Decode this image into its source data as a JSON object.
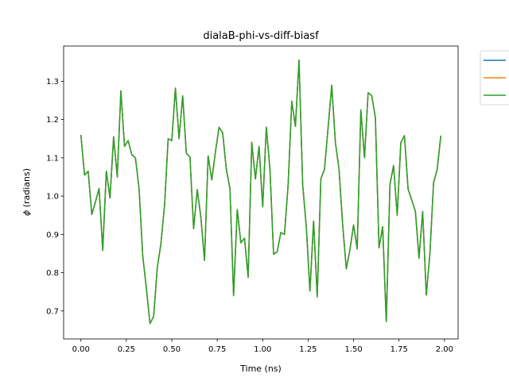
{
  "chart_data": {
    "type": "line",
    "title": "dialaB-phi-vs-diff-biasf",
    "xlabel": "Time (ns)",
    "ylabel_symbol": "ϕ",
    "ylabel_text": " (radians)",
    "xlim": [
      -0.095,
      2.075
    ],
    "ylim": [
      0.627,
      1.392
    ],
    "x_ticks": [
      0.0,
      0.25,
      0.5,
      0.75,
      1.0,
      1.25,
      1.5,
      1.75,
      2.0
    ],
    "x_tick_labels": [
      "0.00",
      "0.25",
      "0.50",
      "0.75",
      "1.00",
      "1.25",
      "1.50",
      "1.75",
      "2.00"
    ],
    "y_ticks": [
      0.7,
      0.8,
      0.9,
      1.0,
      1.1,
      1.2,
      1.3
    ],
    "y_tick_labels": [
      "0.7",
      "0.8",
      "0.9",
      "1.0",
      "1.1",
      "1.2",
      "1.3"
    ],
    "grid": false,
    "legend_placement": "outside-top-right",
    "x": [
      0.0,
      0.02,
      0.04,
      0.06,
      0.08,
      0.1,
      0.12,
      0.14,
      0.16,
      0.18,
      0.2,
      0.22,
      0.24,
      0.26,
      0.28,
      0.3,
      0.32,
      0.34,
      0.36,
      0.38,
      0.4,
      0.42,
      0.44,
      0.46,
      0.48,
      0.5,
      0.52,
      0.54,
      0.56,
      0.58,
      0.6,
      0.62,
      0.64,
      0.66,
      0.68,
      0.7,
      0.72,
      0.74,
      0.76,
      0.78,
      0.8,
      0.82,
      0.84,
      0.86,
      0.88,
      0.9,
      0.92,
      0.94,
      0.96,
      0.98,
      1.0,
      1.02,
      1.04,
      1.06,
      1.08,
      1.1,
      1.12,
      1.14,
      1.16,
      1.18,
      1.2,
      1.22,
      1.24,
      1.26,
      1.28,
      1.3,
      1.32,
      1.34,
      1.36,
      1.38,
      1.4,
      1.42,
      1.44,
      1.46,
      1.48,
      1.5,
      1.52,
      1.54,
      1.56,
      1.58,
      1.6,
      1.62,
      1.64,
      1.66,
      1.68,
      1.7,
      1.72,
      1.74,
      1.76,
      1.78,
      1.8,
      1.82,
      1.84,
      1.86,
      1.88,
      1.9,
      1.92,
      1.94,
      1.96,
      1.98
    ],
    "series": [
      {
        "color": "#1f77b4",
        "values": [
          1.16,
          1.055,
          1.065,
          0.952,
          0.985,
          1.02,
          0.858,
          1.065,
          0.995,
          1.155,
          1.05,
          1.275,
          1.13,
          1.145,
          1.108,
          1.1,
          1.02,
          0.845,
          0.76,
          0.667,
          0.685,
          0.812,
          0.875,
          0.975,
          1.15,
          1.145,
          1.282,
          1.15,
          1.262,
          1.112,
          1.102,
          0.915,
          1.017,
          0.945,
          0.832,
          1.105,
          1.042,
          1.115,
          1.18,
          1.165,
          1.07,
          1.02,
          0.74,
          0.965,
          0.878,
          0.89,
          0.788,
          1.14,
          1.045,
          1.13,
          0.972,
          1.18,
          1.07,
          0.848,
          0.855,
          0.905,
          0.9,
          1.03,
          1.248,
          1.182,
          1.355,
          1.03,
          0.92,
          0.752,
          0.935,
          0.737,
          1.045,
          1.07,
          1.18,
          1.29,
          1.14,
          1.07,
          0.925,
          0.81,
          0.86,
          0.925,
          0.862,
          1.225,
          1.1,
          1.27,
          1.262,
          1.205,
          0.865,
          0.92,
          0.672,
          1.03,
          1.08,
          0.95,
          1.14,
          1.158,
          1.018,
          0.99,
          0.96,
          0.838,
          0.96,
          0.742,
          0.85,
          1.035,
          1.07,
          1.158
        ]
      },
      {
        "color": "#ff7f0e",
        "values": [
          1.16,
          1.055,
          1.065,
          0.952,
          0.985,
          1.02,
          0.858,
          1.065,
          0.995,
          1.155,
          1.05,
          1.275,
          1.13,
          1.145,
          1.108,
          1.1,
          1.02,
          0.845,
          0.76,
          0.667,
          0.685,
          0.812,
          0.875,
          0.975,
          1.15,
          1.145,
          1.282,
          1.15,
          1.262,
          1.112,
          1.102,
          0.915,
          1.017,
          0.945,
          0.832,
          1.105,
          1.042,
          1.115,
          1.18,
          1.165,
          1.07,
          1.02,
          0.74,
          0.965,
          0.878,
          0.89,
          0.788,
          1.14,
          1.045,
          1.13,
          0.972,
          1.18,
          1.07,
          0.848,
          0.855,
          0.905,
          0.9,
          1.03,
          1.248,
          1.182,
          1.355,
          1.03,
          0.92,
          0.752,
          0.935,
          0.737,
          1.045,
          1.07,
          1.18,
          1.29,
          1.14,
          1.07,
          0.925,
          0.81,
          0.86,
          0.925,
          0.862,
          1.225,
          1.1,
          1.27,
          1.262,
          1.205,
          0.865,
          0.92,
          0.672,
          1.03,
          1.08,
          0.95,
          1.14,
          1.158,
          1.018,
          0.99,
          0.96,
          0.838,
          0.96,
          0.742,
          0.85,
          1.035,
          1.07,
          1.158
        ]
      },
      {
        "color": "#2ca02c",
        "values": [
          1.16,
          1.055,
          1.065,
          0.952,
          0.985,
          1.02,
          0.858,
          1.065,
          0.995,
          1.155,
          1.05,
          1.275,
          1.13,
          1.145,
          1.108,
          1.1,
          1.02,
          0.845,
          0.76,
          0.667,
          0.685,
          0.812,
          0.875,
          0.975,
          1.15,
          1.145,
          1.282,
          1.15,
          1.262,
          1.112,
          1.102,
          0.915,
          1.017,
          0.945,
          0.832,
          1.105,
          1.042,
          1.115,
          1.18,
          1.165,
          1.07,
          1.02,
          0.74,
          0.965,
          0.878,
          0.89,
          0.788,
          1.14,
          1.045,
          1.13,
          0.972,
          1.18,
          1.07,
          0.848,
          0.855,
          0.905,
          0.9,
          1.03,
          1.248,
          1.182,
          1.355,
          1.03,
          0.92,
          0.752,
          0.935,
          0.737,
          1.045,
          1.07,
          1.18,
          1.29,
          1.14,
          1.07,
          0.925,
          0.81,
          0.86,
          0.925,
          0.862,
          1.225,
          1.1,
          1.27,
          1.262,
          1.205,
          0.865,
          0.92,
          0.672,
          1.03,
          1.08,
          0.95,
          1.14,
          1.158,
          1.018,
          0.99,
          0.96,
          0.838,
          0.96,
          0.742,
          0.85,
          1.035,
          1.07,
          1.158
        ]
      }
    ]
  }
}
